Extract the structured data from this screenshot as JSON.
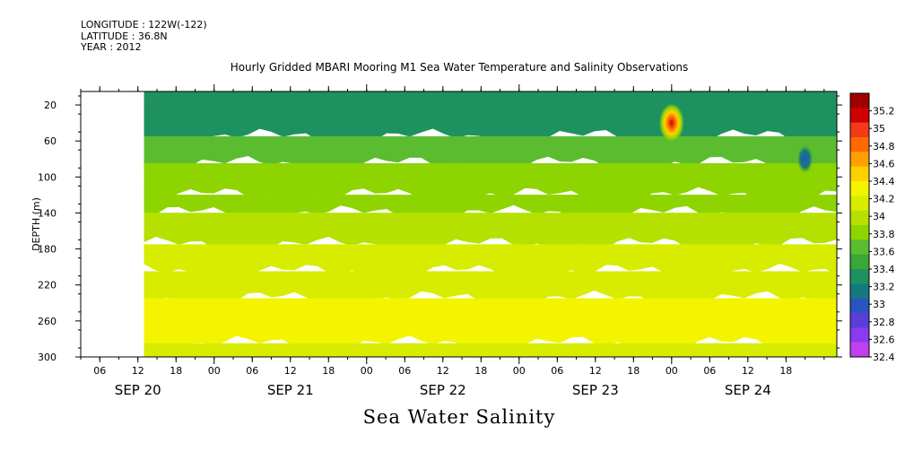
{
  "header": {
    "longitude": "LONGITUDE : 122W(-122)",
    "latitude": "LATITUDE : 36.8N",
    "year": "YEAR : 2012"
  },
  "chart_data": {
    "type": "heatmap",
    "title": "Hourly Gridded MBARI Mooring M1 Sea Water Temperature and Salinity Observations",
    "xlabel": "Sea Water Salinity",
    "ylabel": "DEPTH (m)",
    "y_ticks": [
      20,
      60,
      100,
      140,
      180,
      220,
      260,
      300
    ],
    "ylim": [
      300,
      5
    ],
    "x_hour_ticks": [
      "06",
      "12",
      "18",
      "00",
      "06",
      "12",
      "18",
      "00",
      "06",
      "12",
      "18",
      "00",
      "06",
      "12",
      "18",
      "00",
      "06",
      "12",
      "18"
    ],
    "x_day_labels": [
      "SEP 20",
      "SEP 21",
      "SEP 22",
      "SEP 23",
      "SEP 24"
    ],
    "data_start": "SEP 20 13:00",
    "colorbar_ticks": [
      "35.2",
      "35",
      "34.8",
      "34.6",
      "34.4",
      "34.2",
      "34",
      "33.8",
      "33.6",
      "33.4",
      "33.2",
      "33",
      "32.8",
      "32.6",
      "32.4"
    ],
    "colorbar_colors": [
      "#a00000",
      "#d00000",
      "#f23a1a",
      "#ff6a00",
      "#ffa000",
      "#ffd000",
      "#f4f400",
      "#d8ec00",
      "#b6e000",
      "#8ed400",
      "#5cbc30",
      "#38a838",
      "#1e9160",
      "#157a80",
      "#2a55c0",
      "#5a3ed8",
      "#8a3af0",
      "#c040f0"
    ],
    "depth_bands": [
      {
        "from": 5,
        "to": 55,
        "salinity": 33.4
      },
      {
        "from": 55,
        "to": 85,
        "salinity": 33.6
      },
      {
        "from": 85,
        "to": 120,
        "salinity": 33.8
      },
      {
        "from": 120,
        "to": 140,
        "salinity": 33.9
      },
      {
        "from": 140,
        "to": 175,
        "salinity": 34.0
      },
      {
        "from": 175,
        "to": 205,
        "salinity": 34.1
      },
      {
        "from": 205,
        "to": 235,
        "salinity": 34.2
      },
      {
        "from": 235,
        "to": 285,
        "salinity": 34.3
      },
      {
        "from": 285,
        "to": 300,
        "salinity": 34.2
      }
    ],
    "anomalies": [
      {
        "time": "SEP 24 00",
        "depth": 40,
        "salinity": 35.0
      },
      {
        "time": "SEP 24 21",
        "depth": 80,
        "salinity": 33.0
      }
    ]
  }
}
